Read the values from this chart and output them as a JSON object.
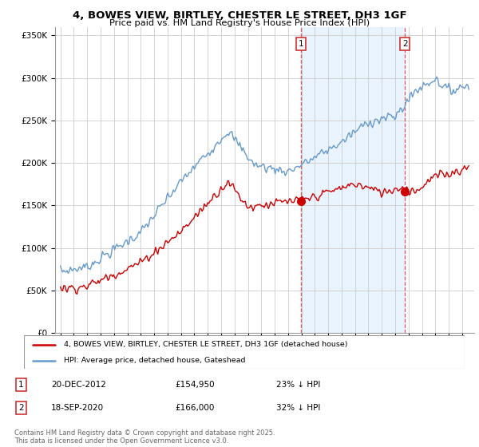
{
  "title": "4, BOWES VIEW, BIRTLEY, CHESTER LE STREET, DH3 1GF",
  "subtitle": "Price paid vs. HM Land Registry's House Price Index (HPI)",
  "legend_line1": "4, BOWES VIEW, BIRTLEY, CHESTER LE STREET, DH3 1GF (detached house)",
  "legend_line2": "HPI: Average price, detached house, Gateshead",
  "annotation1_label": "1",
  "annotation1_date": "20-DEC-2012",
  "annotation1_price": "£154,950",
  "annotation1_hpi": "23% ↓ HPI",
  "annotation2_label": "2",
  "annotation2_date": "18-SEP-2020",
  "annotation2_price": "£166,000",
  "annotation2_hpi": "32% ↓ HPI",
  "footnote": "Contains HM Land Registry data © Crown copyright and database right 2025.\nThis data is licensed under the Open Government Licence v3.0.",
  "red_color": "#cc0000",
  "blue_color": "#6699cc",
  "highlight_blue": "#ddeeff",
  "ylim": [
    0,
    360000
  ],
  "yticks": [
    0,
    50000,
    100000,
    150000,
    200000,
    250000,
    300000,
    350000
  ],
  "ytick_labels": [
    "£0",
    "£50K",
    "£100K",
    "£150K",
    "£200K",
    "£250K",
    "£300K",
    "£350K"
  ],
  "background_color": "#ffffff",
  "grid_color": "#cccccc",
  "purchase1_x": 2012.97,
  "purchase1_y": 154950,
  "purchase2_x": 2020.72,
  "purchase2_y": 166000,
  "xlim_left": 1994.6,
  "xlim_right": 2025.9
}
